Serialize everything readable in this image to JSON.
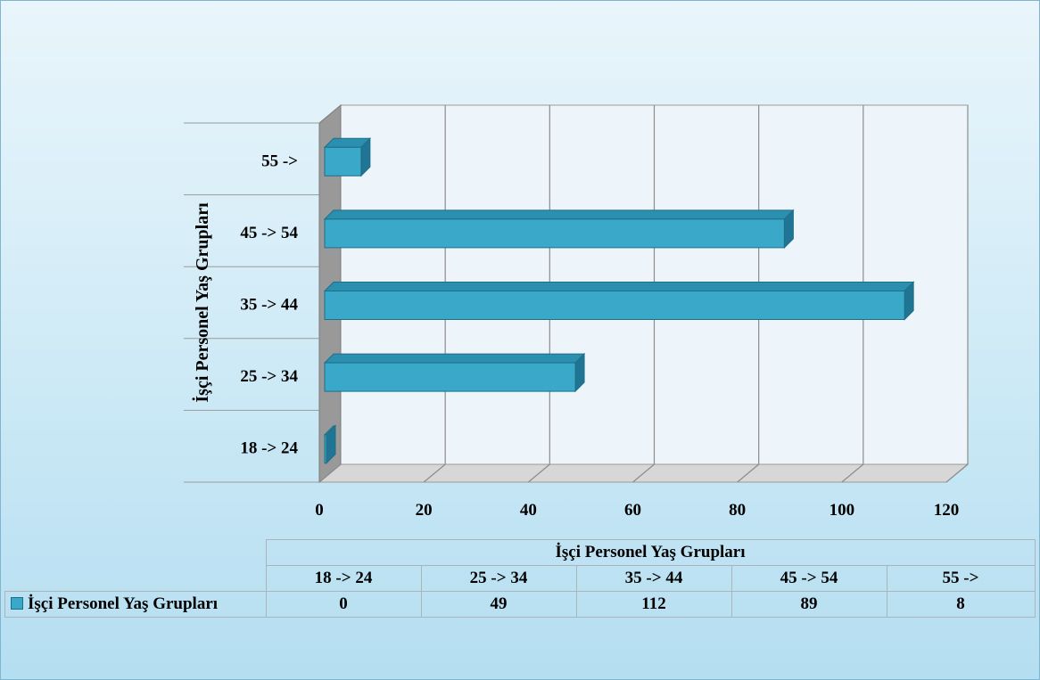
{
  "chart_data": {
    "type": "bar",
    "orientation": "horizontal",
    "title": "",
    "xlabel": "",
    "ylabel": "İşçi Personel Yaş Grupları",
    "categories": [
      "18 -> 24",
      "25 -> 34",
      "35 -> 44",
      "45 -> 54",
      "55 ->"
    ],
    "series": [
      {
        "name": "İşçi Personel Yaş Grupları",
        "values": [
          0,
          49,
          112,
          89,
          8
        ]
      }
    ],
    "xlim": [
      0,
      120
    ],
    "xticks": [
      0,
      20,
      40,
      60,
      80,
      100,
      120
    ],
    "grid": true,
    "three_d": true,
    "bar_color": "#3aa9c9",
    "data_table": true
  },
  "table": {
    "header": "İşçi Personel Yaş Grupları",
    "categories": [
      "18 -> 24",
      "25 -> 34",
      "35 -> 44",
      "45 -> 54",
      "55 ->"
    ],
    "row_label": "İşçi Personel Yaş Grupları",
    "values": [
      "0",
      "49",
      "112",
      "89",
      "8"
    ]
  }
}
